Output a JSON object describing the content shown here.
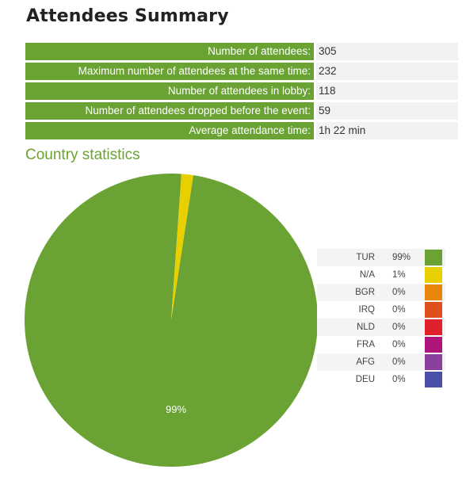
{
  "title": "Attendees Summary",
  "summary": [
    {
      "label": "Number of attendees:",
      "value": "305"
    },
    {
      "label": "Maximum number of attendees at the same time:",
      "value": "232"
    },
    {
      "label": "Number of attendees in lobby:",
      "value": "118"
    },
    {
      "label": "Number of attendees dropped before the event:",
      "value": "59"
    },
    {
      "label": "Average attendance time:",
      "value": "1h 22 min"
    }
  ],
  "section_title": "Country statistics",
  "chart_data": {
    "type": "pie",
    "slice_label": "99%",
    "legend_placement": "right",
    "slices": [
      {
        "label": "TUR",
        "percent_label": "99%",
        "value": 98.7,
        "color": "#6aa234"
      },
      {
        "label": "N/A",
        "percent_label": "1%",
        "value": 1.3,
        "color": "#e8d000"
      },
      {
        "label": "BGR",
        "percent_label": "0%",
        "value": 0,
        "color": "#e8860c"
      },
      {
        "label": "IRQ",
        "percent_label": "0%",
        "value": 0,
        "color": "#e0501e"
      },
      {
        "label": "NLD",
        "percent_label": "0%",
        "value": 0,
        "color": "#e0202a"
      },
      {
        "label": "FRA",
        "percent_label": "0%",
        "value": 0,
        "color": "#b0167a"
      },
      {
        "label": "AFG",
        "percent_label": "0%",
        "value": 0,
        "color": "#8a3e9e"
      },
      {
        "label": "DEU",
        "percent_label": "0%",
        "value": 0,
        "color": "#4a50a8"
      }
    ]
  }
}
